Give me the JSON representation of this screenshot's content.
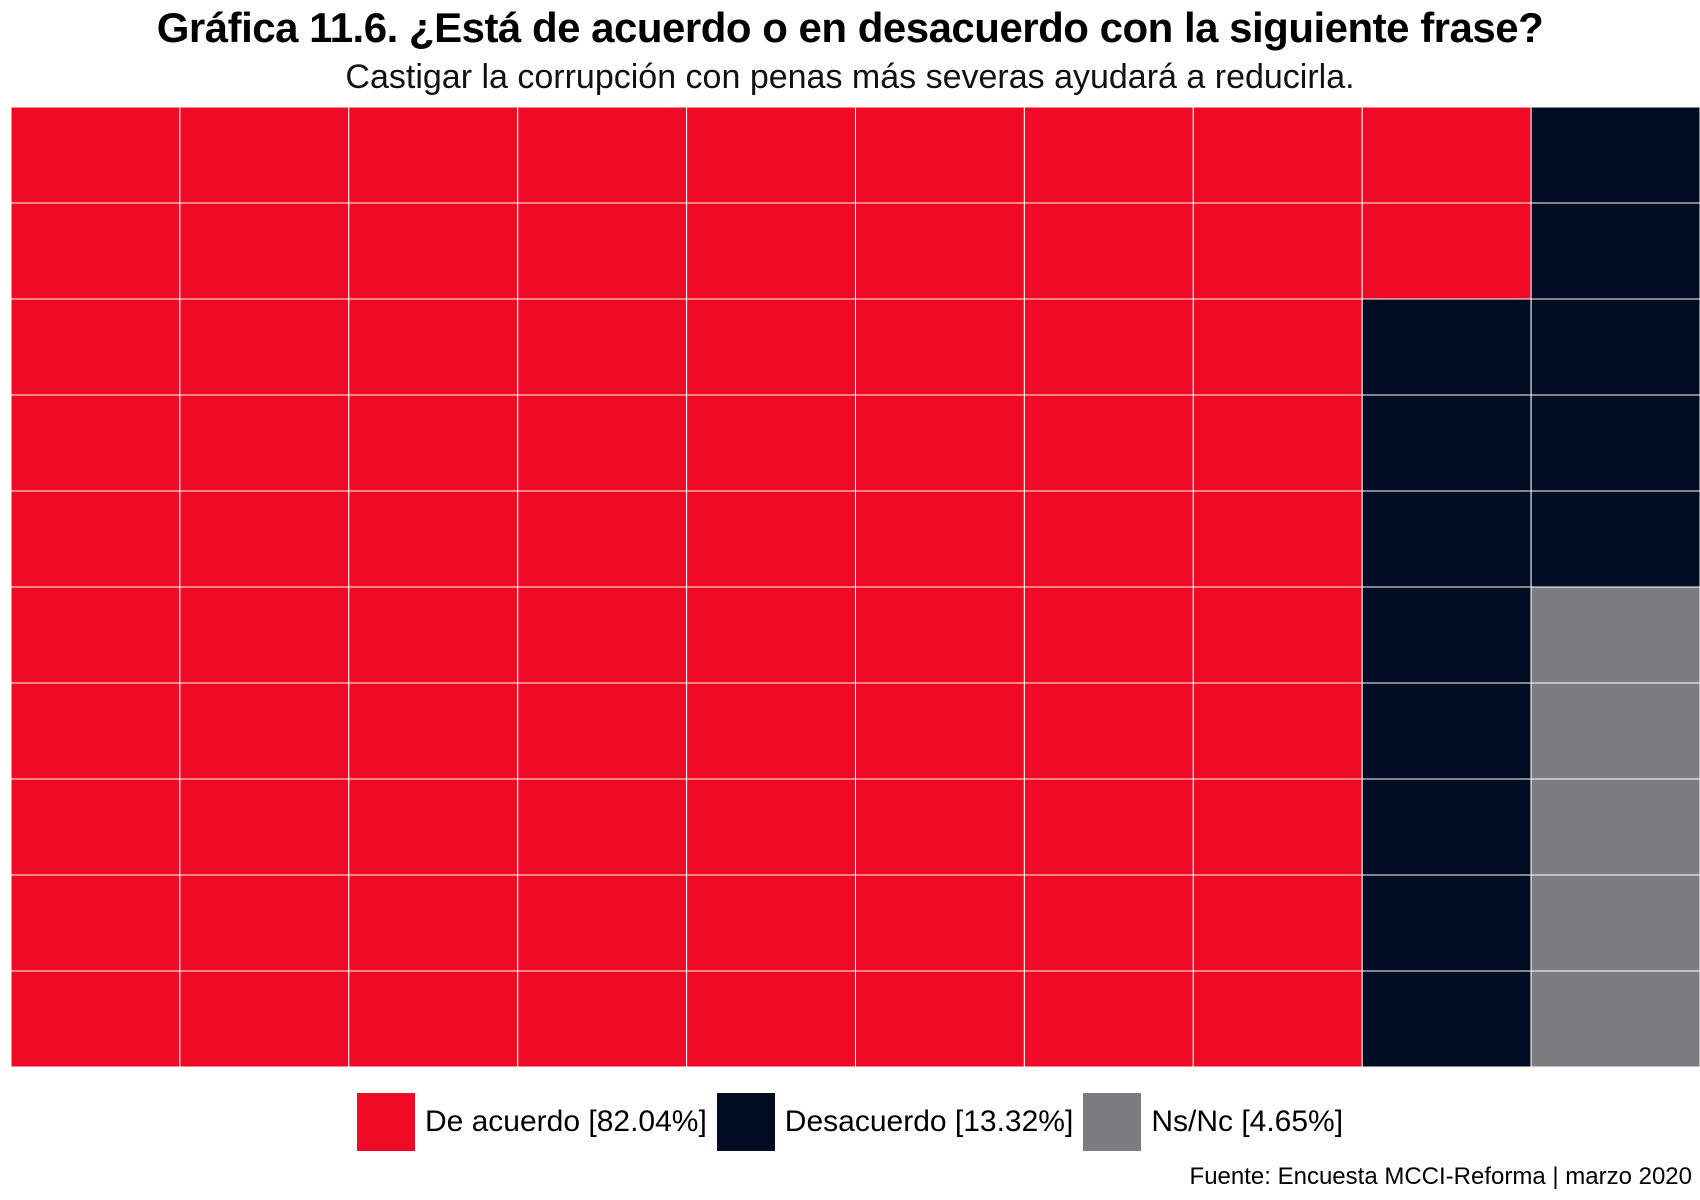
{
  "chart_data": {
    "type": "waffle",
    "title": "Gráfica 11.6. ¿Está de acuerdo o en desacuerdo con la siguiente frase?",
    "subtitle": "Castigar la corrupción con penas más severas ayudará a reducirla.",
    "grid": {
      "columns": 10,
      "rows": 10
    },
    "series": [
      {
        "name": "De acuerdo",
        "label": "De acuerdo [82.04%]",
        "value": 82.04,
        "squares": 82,
        "color": "#f00a26"
      },
      {
        "name": "Desacuerdo",
        "label": "Desacuerdo [13.32%]",
        "value": 13.32,
        "squares": 13,
        "color": "#000c21"
      },
      {
        "name": "Ns/Nc",
        "label": "Ns/Nc [4.65%]",
        "value": 4.65,
        "squares": 5,
        "color": "#7b7c80"
      }
    ],
    "legend_position": "bottom",
    "source": "Fuente: Encuesta MCCI-Reforma | marzo 2020"
  },
  "colors": {
    "cell_border": "#ffffff"
  }
}
